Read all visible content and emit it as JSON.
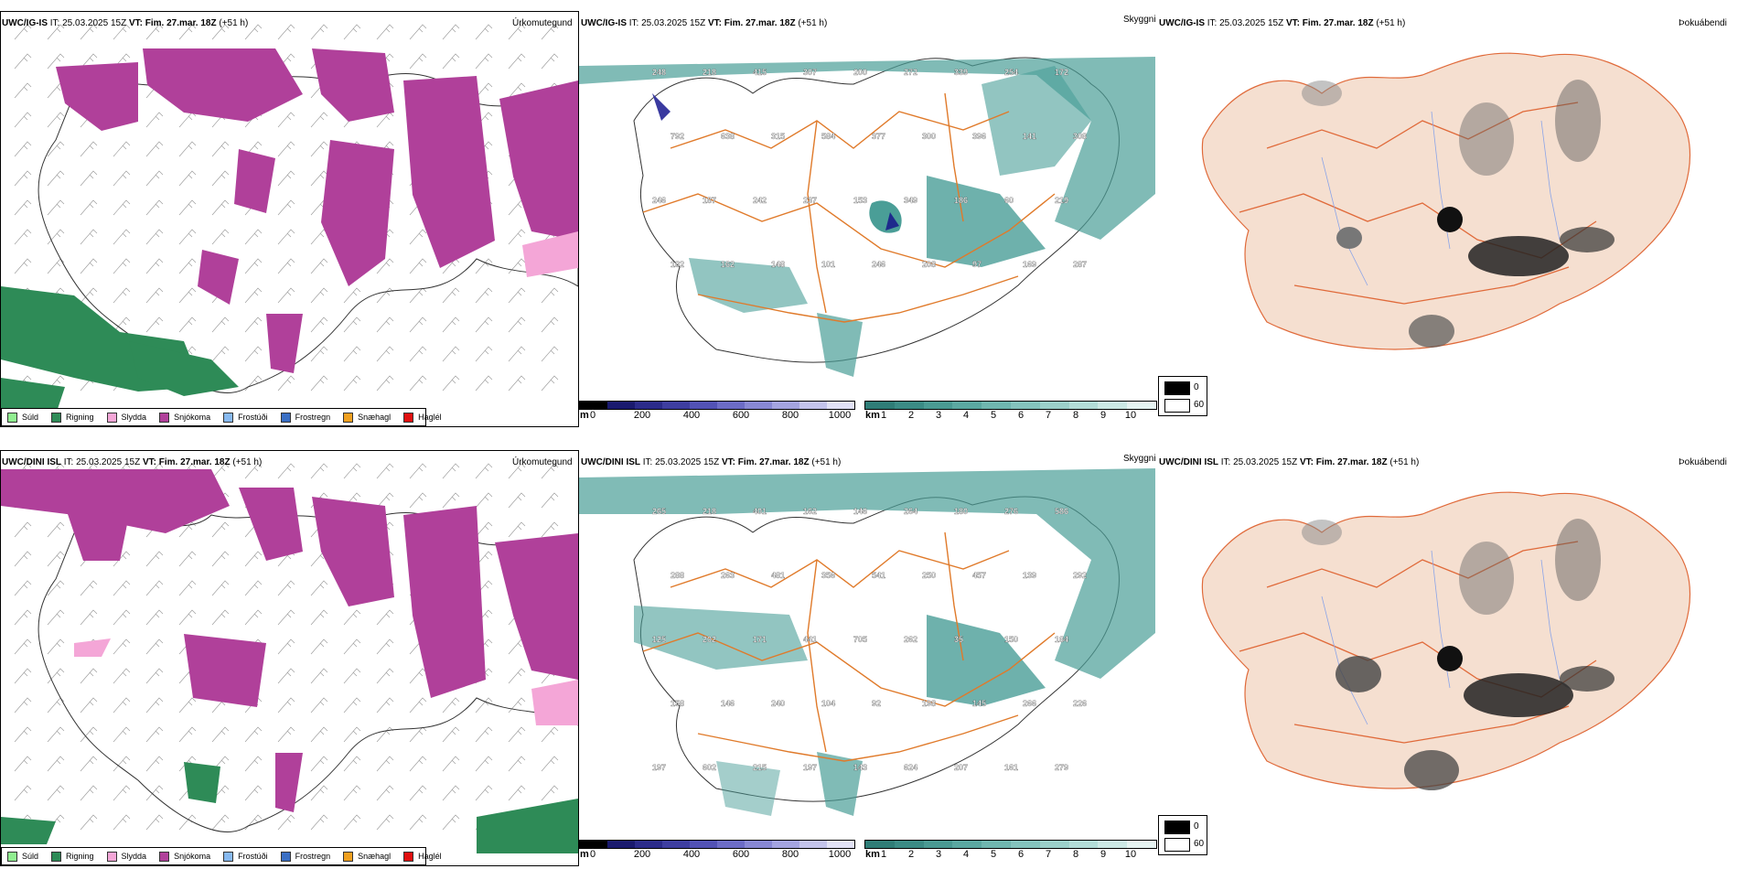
{
  "rows": [
    {
      "header": {
        "model": "UWC/IG-IS",
        "it_label": "IT:",
        "it": "25.03.2025 15Z",
        "vt_label": "VT:",
        "vt": "Fim. 27.mar. 18Z",
        "lead": "(+51 h)"
      },
      "panels": [
        "Úrkomutegund",
        "Skyggni",
        "Þokuábendi"
      ]
    },
    {
      "header": {
        "model": "UWC/DINI ISL",
        "it_label": "IT:",
        "it": "25.03.2025 15Z",
        "vt_label": "VT:",
        "vt": "Fim. 27.mar. 18Z",
        "lead": "(+51 h)"
      },
      "panels": [
        "Úrkomutegund",
        "Skyggni",
        "Þokuábendi"
      ]
    }
  ],
  "precip_legend": [
    {
      "label": "Súld",
      "color": "#90ee90"
    },
    {
      "label": "Rigning",
      "color": "#2e8b57"
    },
    {
      "label": "Slydda",
      "color": "#f4a6d7"
    },
    {
      "label": "Snjókoma",
      "color": "#b0409a"
    },
    {
      "label": "Frostúði",
      "color": "#87b9f0"
    },
    {
      "label": "Frostregn",
      "color": "#3a6fc4"
    },
    {
      "label": "Snæhagl",
      "color": "#f0a020"
    },
    {
      "label": "Haglél",
      "color": "#e01010"
    }
  ],
  "terrain_bar": {
    "unit": "m",
    "ticks": [
      "0",
      "200",
      "400",
      "600",
      "800",
      "1000"
    ]
  },
  "visibility_bar": {
    "unit": "km",
    "ticks": [
      "1",
      "2",
      "3",
      "4",
      "5",
      "6",
      "7",
      "8",
      "9",
      "10"
    ]
  },
  "fog_legend": {
    "high": "0",
    "low": "60"
  },
  "peak_labels_top": [
    "248",
    "218",
    "415",
    "307",
    "200",
    "272",
    "339",
    "254",
    "172",
    "792",
    "638",
    "315",
    "584",
    "377",
    "300",
    "396",
    "141",
    "308",
    "246",
    "187",
    "242",
    "237",
    "153",
    "349",
    "186",
    "60",
    "219",
    "182",
    "162",
    "148",
    "101",
    "246",
    "208",
    "97",
    "169",
    "287"
  ],
  "peak_labels_bottom": [
    "265",
    "218",
    "401",
    "162",
    "146",
    "264",
    "180",
    "276",
    "586",
    "288",
    "263",
    "481",
    "356",
    "541",
    "250",
    "457",
    "139",
    "292",
    "125",
    "202",
    "171",
    "441",
    "705",
    "262",
    "35",
    "150",
    "184",
    "158",
    "146",
    "240",
    "104",
    "92",
    "198",
    "145",
    "266",
    "226",
    "197",
    "602",
    "215",
    "197",
    "143",
    "624",
    "207",
    "161",
    "279"
  ],
  "colors": {
    "snow": "#b0409a",
    "rain": "#2e8b57",
    "sleet": "#f4a6d7",
    "vis": "#4a9e97",
    "land": "#f5dfd0",
    "roads": "#e07a2a",
    "fog": "#222222"
  }
}
